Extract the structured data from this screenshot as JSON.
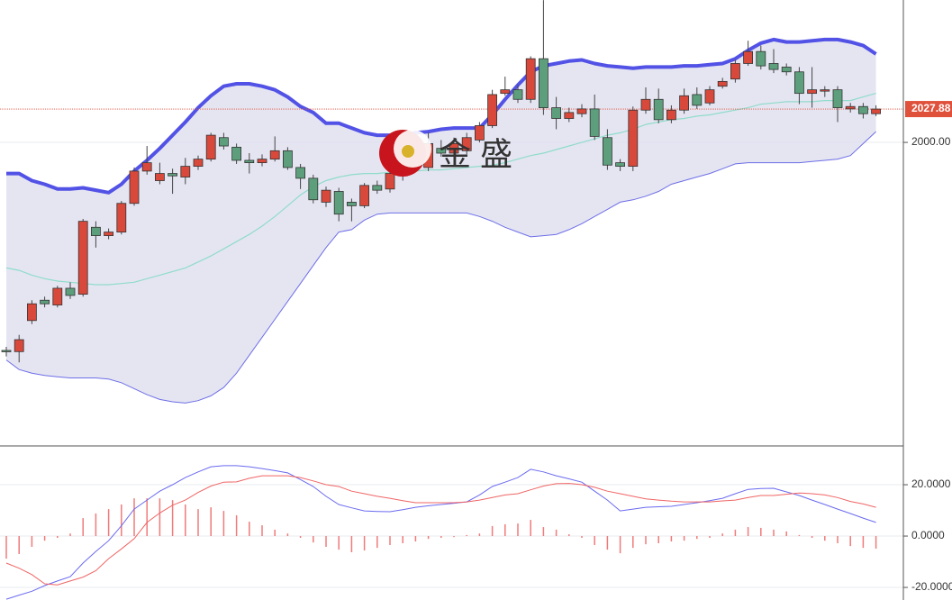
{
  "chart_data": [
    {
      "type": "candlestick",
      "watermark": "金 盛",
      "open": [
        1826,
        1825,
        1851,
        1868,
        1864,
        1878,
        1873,
        1929,
        1922,
        1925,
        1949,
        1976,
        1968,
        1974,
        1971,
        1980,
        1986,
        2004,
        1996,
        1985,
        1983,
        1986,
        1993,
        1979,
        1970,
        1950,
        1959,
        1950,
        1947,
        1964,
        1961,
        1972,
        1980,
        1979,
        1995,
        1991,
        1993,
        2002,
        2014,
        2041,
        2044,
        2036,
        2070,
        2029,
        2020,
        2024,
        2028,
        2004,
        1983,
        1980,
        2027,
        2036,
        2019,
        2027,
        2040,
        2033,
        2047,
        2053,
        2066,
        2076,
        2066,
        2063,
        2059,
        2041,
        2043,
        2044,
        2028,
        2030,
        2024
      ],
      "high": [
        1829,
        1839,
        1868,
        1871,
        1880,
        1883,
        1936,
        1934,
        1928,
        1951,
        1979,
        1997,
        1983,
        1978,
        1987,
        1989,
        2008,
        2008,
        1999,
        1991,
        1990,
        2005,
        1996,
        1982,
        1973,
        1963,
        1962,
        1953,
        1966,
        1968,
        1983,
        1990,
        1996,
        2008,
        2002,
        2004,
        2008,
        2017,
        2044,
        2055,
        2048,
        2072,
        2119,
        2038,
        2029,
        2032,
        2040,
        2011,
        1986,
        2030,
        2046,
        2045,
        2031,
        2045,
        2046,
        2047,
        2054,
        2069,
        2085,
        2081,
        2078,
        2066,
        2063,
        2063,
        2047,
        2047,
        2033,
        2033,
        2031
      ],
      "low": [
        1821,
        1816,
        1848,
        1862,
        1862,
        1869,
        1871,
        1912,
        1919,
        1923,
        1947,
        1973,
        1965,
        1957,
        1965,
        1977,
        1984,
        1994,
        1982,
        1974,
        1980,
        1984,
        1977,
        1961,
        1949,
        1946,
        1934,
        1934,
        1945,
        1957,
        1958,
        1968,
        1977,
        1976,
        1988,
        1988,
        1990,
        2000,
        2012,
        2039,
        2033,
        2033,
        2023,
        2011,
        2017,
        2021,
        2002,
        1977,
        1976,
        1976,
        2024,
        2016,
        2016,
        2024,
        2028,
        2031,
        2045,
        2050,
        2064,
        2061,
        2058,
        2056,
        2032,
        2029,
        2038,
        2017,
        2025,
        2020,
        2022
      ],
      "close": [
        1825,
        1835,
        1865,
        1865,
        1878,
        1872,
        1934,
        1922,
        1925,
        1949,
        1976,
        1983,
        1974,
        1972,
        1980,
        1986,
        2006,
        1997,
        1985,
        1983,
        1986,
        1993,
        1979,
        1970,
        1952,
        1960,
        1940,
        1947,
        1964,
        1960,
        1974,
        1983,
        1991,
        1999,
        1991,
        1999,
        2004,
        2014,
        2040,
        2044,
        2036,
        2070,
        2029,
        2020,
        2025,
        2028,
        2005,
        1981,
        1980,
        2027,
        2036,
        2019,
        2027,
        2039,
        2031,
        2044,
        2051,
        2066,
        2076,
        2064,
        2061,
        2059,
        2041,
        2044,
        2044,
        2029,
        2030,
        2024,
        2027.88
      ],
      "up_color": "#d8493b",
      "down_color": "#5d9f7c",
      "upper_band": {
        "color": "#5252e6",
        "values": [
          1974,
          1974,
          1968,
          1965,
          1961,
          1961,
          1962,
          1960,
          1958,
          1965,
          1976,
          1985,
          1995,
          2006,
          2017,
          2029,
          2039,
          2047,
          2049,
          2049,
          2047,
          2044,
          2038,
          2030,
          2025,
          2016,
          2016,
          2012,
          2008,
          2006,
          2006,
          2006,
          2008,
          2009,
          2011,
          2012,
          2012,
          2012,
          2023,
          2036,
          2048,
          2059,
          2064,
          2066,
          2068,
          2069,
          2066,
          2064,
          2063,
          2062,
          2063,
          2063,
          2063,
          2064,
          2064,
          2065,
          2066,
          2070,
          2077,
          2083,
          2086,
          2084,
          2084,
          2085,
          2086,
          2086,
          2084,
          2081,
          2074
        ]
      },
      "middle_band": {
        "color": "#8fdcc9",
        "values": [
          1895,
          1893,
          1889,
          1886,
          1884,
          1883,
          1882,
          1881,
          1881,
          1882,
          1883,
          1886,
          1889,
          1892,
          1895,
          1900,
          1905,
          1911,
          1917,
          1923,
          1930,
          1938,
          1947,
          1956,
          1963,
          1968,
          1971,
          1973,
          1974,
          1974,
          1975,
          1976,
          1976,
          1977,
          1977,
          1978,
          1979,
          1980,
          1981,
          1983,
          1986,
          1989,
          1991,
          1994,
          1997,
          2000,
          2003,
          2006,
          2008,
          2011,
          2015,
          2017,
          2019,
          2020,
          2022,
          2023,
          2025,
          2027,
          2029,
          2032,
          2033,
          2034,
          2034,
          2034,
          2035,
          2035,
          2035,
          2038,
          2041
        ]
      },
      "lower_band": {
        "color": "#6e6ee8",
        "values": [
          1818,
          1810,
          1807,
          1805,
          1804,
          1803,
          1803,
          1803,
          1802,
          1799,
          1794,
          1789,
          1785,
          1783,
          1782,
          1784,
          1788,
          1795,
          1807,
          1822,
          1837,
          1852,
          1867,
          1882,
          1897,
          1912,
          1925,
          1927,
          1935,
          1940,
          1941,
          1941,
          1941,
          1941,
          1941,
          1941,
          1941,
          1938,
          1934,
          1929,
          1925,
          1921,
          1922,
          1923,
          1927,
          1932,
          1938,
          1944,
          1950,
          1952,
          1955,
          1959,
          1965,
          1968,
          1971,
          1974,
          1978,
          1982,
          1983,
          1983,
          1983,
          1983,
          1983,
          1984,
          1985,
          1986,
          1989,
          1999,
          2009
        ]
      },
      "band_fill": "#dcdcee",
      "ylim": [
        1746.1,
        2119.1
      ],
      "yticks": [
        {
          "value": 2000,
          "label": "2000.00"
        }
      ],
      "last_price": 2027.88,
      "last_price_color": "#e0513c"
    },
    {
      "type": "macd",
      "histogram": {
        "color": "#f07a7a",
        "values": [
          -8.8,
          -7,
          -4.2,
          -1.8,
          -0.7,
          1,
          7,
          8.8,
          10.5,
          12.3,
          14.7,
          14.7,
          14.7,
          14,
          12.3,
          10.5,
          11.2,
          9.8,
          8.1,
          5.6,
          4.2,
          2.5,
          1,
          -0.7,
          -2.5,
          -4.2,
          -5.3,
          -6.3,
          -5.6,
          -4.6,
          -3.5,
          -2.8,
          -2.1,
          -1.1,
          -0.7,
          -0.4,
          0.4,
          1,
          3.9,
          4.6,
          4.9,
          6.3,
          3.5,
          2.5,
          0.7,
          -0.7,
          -3.5,
          -5.3,
          -6.7,
          -4.6,
          -3.2,
          -2.8,
          -2.1,
          -1.8,
          -1.1,
          -0.7,
          1,
          2.5,
          3.5,
          3.2,
          2.5,
          1.8,
          0.4,
          -0.7,
          -1.8,
          -2.8,
          -3.9,
          -4.6,
          -4.9
        ]
      },
      "series": [
        {
          "color": "#6a6af0",
          "values": [
            -24.6,
            -23,
            -21.5,
            -19.3,
            -17.5,
            -15.8,
            -10.5,
            -6,
            -1.8,
            4,
            10.5,
            14,
            17.5,
            20,
            22.8,
            25,
            27,
            27.4,
            27.4,
            27,
            26.3,
            25.5,
            24.6,
            22,
            19.3,
            15.5,
            12.3,
            11,
            9.8,
            9.6,
            9.5,
            10.3,
            11.2,
            11.8,
            12.3,
            12.8,
            13.3,
            16,
            19.3,
            21,
            22.8,
            26,
            25,
            23.5,
            22.3,
            21,
            17.5,
            14,
            9.8,
            10.5,
            11.2,
            11.4,
            11.6,
            12.3,
            13,
            13.8,
            14.7,
            16.5,
            18.2,
            18.5,
            18.6,
            17.2,
            15.8,
            14,
            12.3,
            10.5,
            8.8,
            7,
            5.3
          ]
        },
        {
          "color": "#f06464",
          "values": [
            -10.5,
            -12.5,
            -15,
            -18.6,
            -19,
            -17.5,
            -16,
            -13.5,
            -8.8,
            -5,
            -1,
            5.3,
            9,
            12,
            14,
            17,
            19.5,
            21,
            21.1,
            22.5,
            23.5,
            23.5,
            23.5,
            22.8,
            21.5,
            20,
            19.3,
            17.5,
            16.5,
            15.5,
            14.7,
            13.8,
            13,
            13,
            13,
            13,
            13.3,
            14,
            15,
            16,
            16.5,
            18,
            19.5,
            20.4,
            20.5,
            20,
            19,
            17.5,
            16.5,
            15.5,
            14.5,
            14,
            13.6,
            13.3,
            13.3,
            13.3,
            13.7,
            14,
            15,
            15.8,
            15.8,
            16.3,
            16.8,
            16.5,
            16,
            15,
            13.5,
            12.5,
            11.2
          ]
        }
      ],
      "ylim": [
        -24.9,
        35.1
      ],
      "yticks": [
        {
          "value": 20,
          "label": "20.0000"
        },
        {
          "value": 0,
          "label": "0.0000"
        },
        {
          "value": -20,
          "label": "-20.0000"
        }
      ]
    }
  ]
}
